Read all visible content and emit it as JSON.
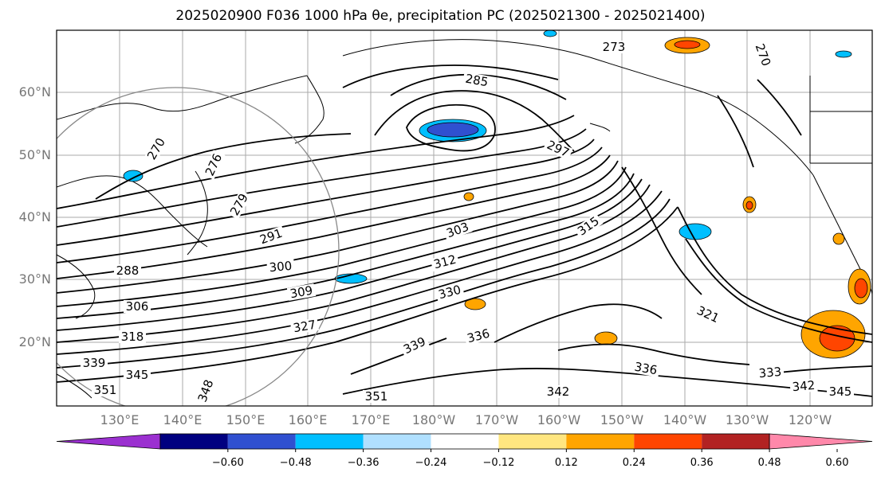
{
  "title": "2025020900 F036 1000 hPa θe, precipitation PC (2025021300 - 2025021400)",
  "map": {
    "latitude_labels": [
      "20°N",
      "30°N",
      "40°N",
      "50°N",
      "60°N"
    ],
    "longitude_labels": [
      "130°E",
      "140°E",
      "150°E",
      "160°E",
      "170°E",
      "180°W",
      "170°W",
      "160°W",
      "150°W",
      "140°W",
      "130°W",
      "120°W"
    ],
    "contour_labels": [
      "270",
      "273",
      "276",
      "279",
      "285",
      "288",
      "291",
      "297",
      "300",
      "303",
      "306",
      "309",
      "312",
      "315",
      "318",
      "321",
      "327",
      "330",
      "333",
      "336",
      "339",
      "342",
      "345",
      "348",
      "351"
    ],
    "contour_interval": 3
  },
  "colorbar": {
    "colors": [
      "#9b30d0",
      "#000080",
      "#3050d0",
      "#00bfff",
      "#b0e0ff",
      "#ffffff",
      "#ffe680",
      "#ffa500",
      "#ff4500",
      "#b22222",
      "#ff88aa"
    ],
    "ticks": [
      "−0.60",
      "−0.48",
      "−0.36",
      "−0.24",
      "−0.12",
      "0.12",
      "0.24",
      "0.36",
      "0.48",
      "0.60"
    ]
  }
}
